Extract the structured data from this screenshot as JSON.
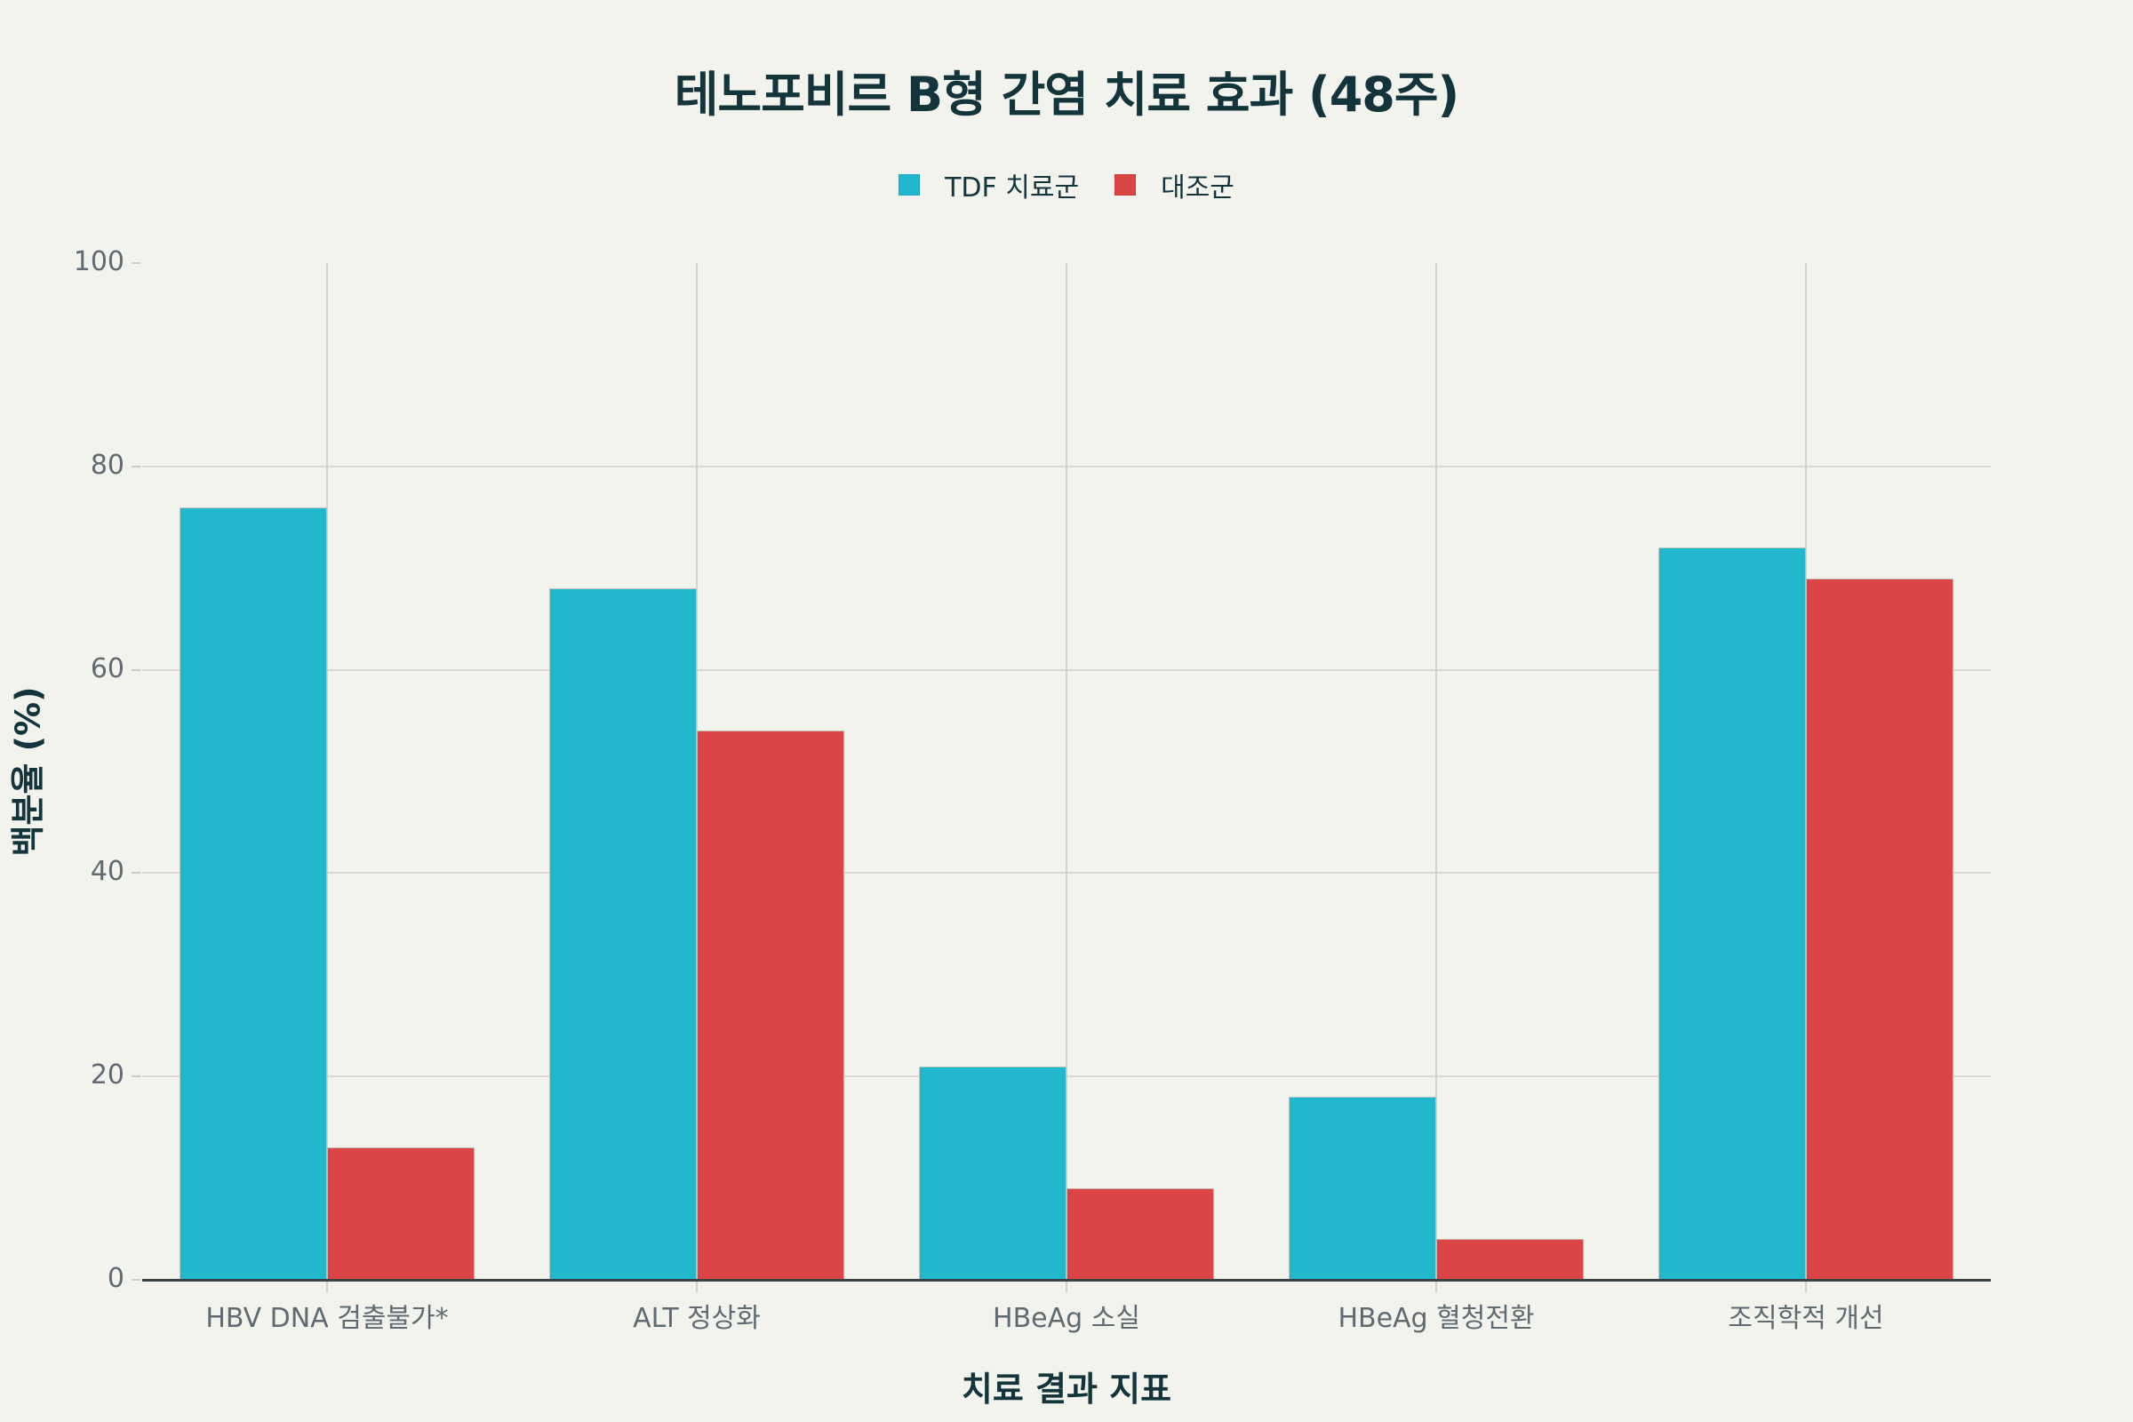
{
  "title": "테노포비르 B형 간염 치료 효과 (48주)",
  "legend": [
    {
      "label": "TDF 치료군",
      "color": "#21B7CC"
    },
    {
      "label": "대조군",
      "color": "#DB4545"
    }
  ],
  "axes": {
    "x_title": "치료 결과 지표",
    "y_title": "백분율 (%)",
    "y_ticks": [
      "0",
      "20",
      "40",
      "60",
      "80",
      "100"
    ]
  },
  "chart_data": {
    "type": "bar",
    "title": "테노포비르 B형 간염 치료 효과 (48주)",
    "xlabel": "치료 결과 지표",
    "ylabel": "백분율 (%)",
    "ylim": [
      0,
      100
    ],
    "yticks": [
      0,
      20,
      40,
      60,
      80,
      100
    ],
    "grid": true,
    "legend_position": "top-center",
    "categories": [
      "HBV DNA 검출불가*",
      "ALT 정상화",
      "HBeAg 소실",
      "HBeAg 혈청전환",
      "조직학적 개선"
    ],
    "series": [
      {
        "name": "TDF 치료군",
        "color": "#21B7CC",
        "values": [
          76,
          68,
          21,
          18,
          72
        ]
      },
      {
        "name": "대조군",
        "color": "#DB4545",
        "values": [
          13,
          54,
          9,
          4,
          69
        ]
      }
    ]
  }
}
